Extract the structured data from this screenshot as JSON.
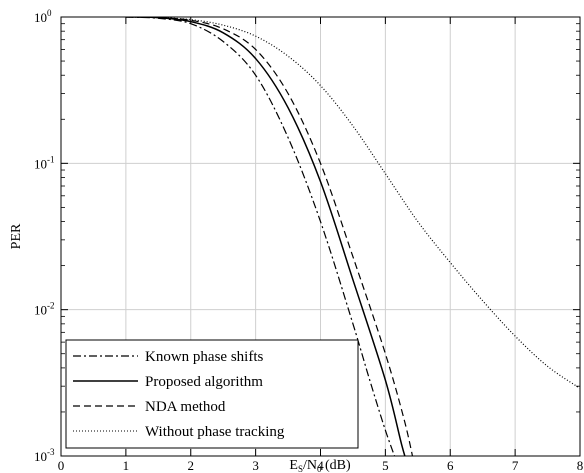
{
  "chart_data": {
    "type": "line",
    "xlabel": {
      "base": "E",
      "sub1": "S",
      "mid": "/N",
      "sub2": "0",
      "tail": " (dB)"
    },
    "ylabel": "PER",
    "xlim": [
      0,
      8
    ],
    "ylim": [
      0.001,
      1
    ],
    "yscale": "log",
    "grid": true,
    "xticks": [
      0,
      1,
      2,
      3,
      4,
      5,
      6,
      7,
      8
    ],
    "xtick_labels": [
      "0",
      "1",
      "2",
      "3",
      "4",
      "5",
      "6",
      "7",
      "8"
    ],
    "yticks": [
      {
        "value": 1,
        "base": "10",
        "exp": "0"
      },
      {
        "value": 0.1,
        "base": "10",
        "exp": "-1"
      },
      {
        "value": 0.01,
        "base": "10",
        "exp": "-2"
      },
      {
        "value": 0.001,
        "base": "10",
        "exp": "-3"
      }
    ],
    "legend_position": "bottom-left",
    "series": [
      {
        "name": "Known phase shifts",
        "style": "dashdot",
        "color": "#000000",
        "x": [
          1.0,
          1.5,
          2.0,
          2.5,
          3.0,
          3.5,
          4.0,
          4.5,
          4.75,
          5.0,
          5.2
        ],
        "y": [
          1.0,
          0.98,
          0.9,
          0.68,
          0.4,
          0.15,
          0.04,
          0.008,
          0.0034,
          0.0015,
          0.00085
        ]
      },
      {
        "name": "Proposed algorithm",
        "style": "solid",
        "color": "#000000",
        "x": [
          1.0,
          1.5,
          2.0,
          2.5,
          3.0,
          3.5,
          4.0,
          4.5,
          5.0,
          5.25,
          5.35
        ],
        "y": [
          1.0,
          0.99,
          0.93,
          0.78,
          0.52,
          0.24,
          0.075,
          0.016,
          0.0033,
          0.0012,
          0.00085
        ]
      },
      {
        "name": "NDA method",
        "style": "dashed",
        "color": "#000000",
        "x": [
          1.0,
          1.5,
          2.0,
          2.5,
          3.0,
          3.5,
          4.0,
          4.5,
          5.0,
          5.3,
          5.45
        ],
        "y": [
          1.0,
          0.99,
          0.95,
          0.83,
          0.6,
          0.3,
          0.1,
          0.023,
          0.005,
          0.0017,
          0.00085
        ]
      },
      {
        "name": "Without phase tracking",
        "style": "dotted",
        "color": "#000000",
        "x": [
          1.0,
          1.5,
          2.0,
          2.5,
          3.0,
          3.5,
          4.0,
          4.5,
          5.0,
          5.5,
          6.0,
          6.5,
          7.0,
          7.5,
          8.0
        ],
        "y": [
          1.0,
          0.99,
          0.96,
          0.88,
          0.74,
          0.54,
          0.34,
          0.18,
          0.085,
          0.04,
          0.021,
          0.0115,
          0.0066,
          0.0041,
          0.0029
        ]
      }
    ]
  }
}
